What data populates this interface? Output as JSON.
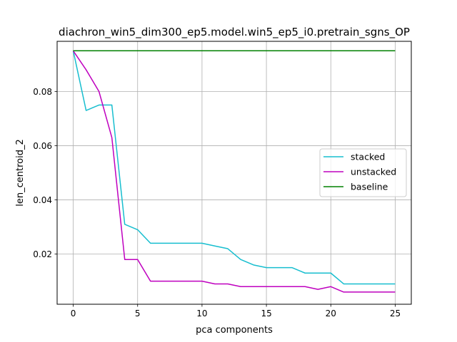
{
  "chart_data": {
    "type": "line",
    "title": "diachron_win5_dim300_ep5.model.win5_ep5_i0.pretrain_sgns_OP",
    "xlabel": "pca components",
    "ylabel": "len_centroid_2",
    "xlim": [
      -1.25,
      26.25
    ],
    "ylim": [
      0.0015,
      0.0985
    ],
    "xticks": [
      0,
      5,
      10,
      15,
      20,
      25
    ],
    "yticks": [
      0.02,
      0.04,
      0.06,
      0.08
    ],
    "xtick_labels": [
      "0",
      "5",
      "10",
      "15",
      "20",
      "25"
    ],
    "ytick_labels": [
      "0.02",
      "0.04",
      "0.06",
      "0.08"
    ],
    "grid": true,
    "legend_position": "center-right",
    "x": [
      0,
      1,
      2,
      3,
      4,
      5,
      6,
      7,
      8,
      9,
      10,
      11,
      12,
      13,
      14,
      15,
      16,
      17,
      18,
      19,
      20,
      21,
      22,
      23,
      24,
      25
    ],
    "series": [
      {
        "name": "stacked",
        "color": "#17becf",
        "values": [
          0.095,
          0.073,
          0.075,
          0.075,
          0.031,
          0.029,
          0.024,
          0.024,
          0.024,
          0.024,
          0.024,
          0.023,
          0.022,
          0.018,
          0.016,
          0.015,
          0.015,
          0.015,
          0.013,
          0.013,
          0.013,
          0.009,
          0.009,
          0.009,
          0.009,
          0.009
        ]
      },
      {
        "name": "unstacked",
        "color": "#bf00bf",
        "values": [
          0.095,
          0.088,
          0.08,
          0.063,
          0.018,
          0.018,
          0.01,
          0.01,
          0.01,
          0.01,
          0.01,
          0.009,
          0.009,
          0.008,
          0.008,
          0.008,
          0.008,
          0.008,
          0.008,
          0.007,
          0.008,
          0.006,
          0.006,
          0.006,
          0.006,
          0.006
        ]
      },
      {
        "name": "baseline",
        "color": "#008000",
        "values": [
          0.095,
          0.095,
          0.095,
          0.095,
          0.095,
          0.095,
          0.095,
          0.095,
          0.095,
          0.095,
          0.095,
          0.095,
          0.095,
          0.095,
          0.095,
          0.095,
          0.095,
          0.095,
          0.095,
          0.095,
          0.095,
          0.095,
          0.095,
          0.095,
          0.095,
          0.095
        ]
      }
    ]
  }
}
